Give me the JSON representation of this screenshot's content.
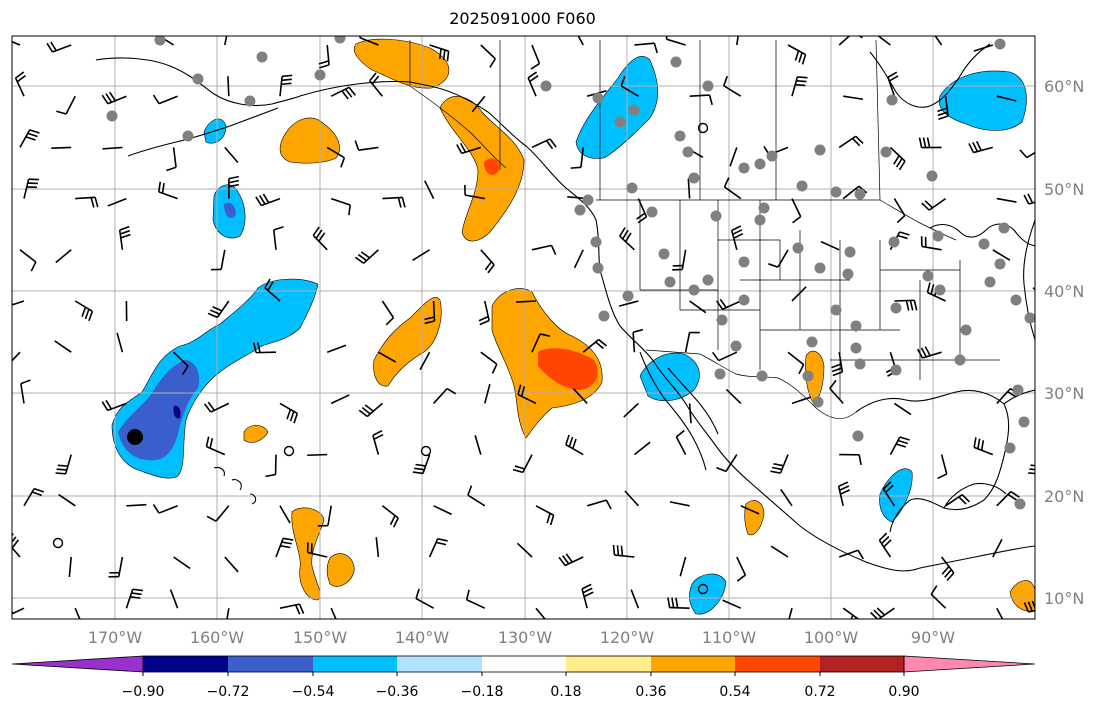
{
  "title": "2025091000 F060",
  "map": {
    "lon_range": [
      -180,
      -80
    ],
    "lat_range": [
      8,
      65
    ],
    "lon_ticks": [
      {
        "value": -170,
        "label": "170°W"
      },
      {
        "value": -160,
        "label": "160°W"
      },
      {
        "value": -150,
        "label": "150°W"
      },
      {
        "value": -140,
        "label": "140°W"
      },
      {
        "value": -130,
        "label": "130°W"
      },
      {
        "value": -120,
        "label": "120°W"
      },
      {
        "value": -110,
        "label": "110°W"
      },
      {
        "value": -100,
        "label": "100°W"
      },
      {
        "value": -90,
        "label": "90°W"
      }
    ],
    "lat_ticks": [
      {
        "value": 10,
        "label": "10°N"
      },
      {
        "value": 20,
        "label": "20°N"
      },
      {
        "value": 30,
        "label": "30°N"
      },
      {
        "value": 40,
        "label": "40°N"
      },
      {
        "value": 50,
        "label": "50°N"
      },
      {
        "value": 60,
        "label": "60°N"
      }
    ],
    "grid": true,
    "axis_color": "#808080"
  },
  "colorbar": {
    "orientation": "horizontal",
    "extend": "both",
    "colors": [
      "#9932CC",
      "#00008B",
      "#3A5FCD",
      "#00BFFF",
      "#B0E2FF",
      "#FFFFFF",
      "#FFEC8B",
      "#FFA500",
      "#FF4500",
      "#B22222",
      "#FF88B0"
    ],
    "labels": [
      "−0.90",
      "−0.72",
      "−0.54",
      "−0.36",
      "−0.18",
      "0.18",
      "0.36",
      "0.54",
      "0.72",
      "0.90"
    ]
  },
  "chart_data": {
    "type": "map",
    "fields": [
      {
        "kind": "filled_contour",
        "levels": [
          -0.9,
          -0.72,
          -0.54,
          -0.36,
          -0.18,
          0.18,
          0.36,
          0.54,
          0.72,
          0.9
        ]
      },
      {
        "kind": "wind_barbs"
      },
      {
        "kind": "station_markers",
        "color": "#808080"
      },
      {
        "kind": "marker",
        "lon": -167,
        "lat": 25.6,
        "color": "#000000"
      }
    ]
  }
}
